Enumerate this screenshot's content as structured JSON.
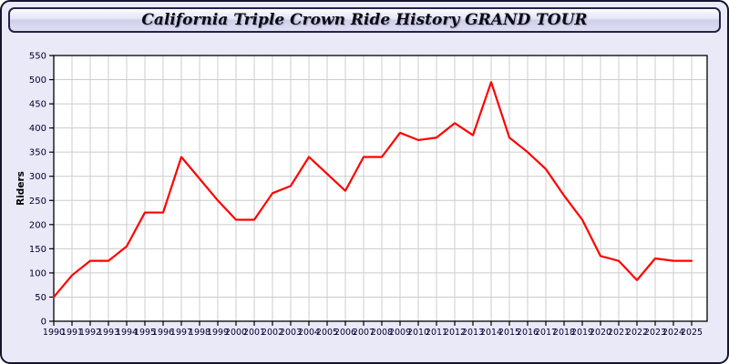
{
  "header": {
    "title": "California Triple Crown Ride History GRAND TOUR"
  },
  "chart_data": {
    "type": "line",
    "title": "California Triple Crown Ride History GRAND TOUR",
    "xlabel": "",
    "ylabel": "Riders",
    "x": [
      1990,
      1991,
      1992,
      1993,
      1994,
      1995,
      1996,
      1997,
      1998,
      1999,
      2000,
      2001,
      2002,
      2003,
      2004,
      2005,
      2006,
      2007,
      2008,
      2009,
      2010,
      2011,
      2012,
      2013,
      2014,
      2015,
      2016,
      2017,
      2018,
      2019,
      2020,
      2021,
      2022,
      2023,
      2024,
      2025
    ],
    "x_tick_labels": [
      "1990",
      "1991",
      "1992",
      "1993",
      "1994",
      "1995",
      "1996",
      "1997",
      "1998",
      "1999",
      "2000",
      "2001",
      "2002",
      "2003",
      "2004",
      "2005",
      "2006",
      "2007",
      "2008",
      "2009",
      "2010",
      "2011",
      "2012",
      "2013",
      "2014",
      "2015",
      "2016",
      "2017",
      "2018",
      "2019",
      "2020",
      "2021",
      "2022",
      "2023",
      "2024",
      "2025"
    ],
    "values": [
      50,
      95,
      125,
      125,
      155,
      225,
      225,
      340,
      295,
      250,
      210,
      210,
      265,
      280,
      340,
      305,
      270,
      340,
      340,
      390,
      375,
      380,
      410,
      385,
      495,
      380,
      350,
      315,
      260,
      210,
      135,
      125,
      85,
      130,
      125,
      125
    ],
    "ylim": [
      0,
      550
    ],
    "y_ticks": [
      0,
      50,
      100,
      150,
      200,
      250,
      300,
      350,
      400,
      450,
      500,
      550
    ],
    "grid": true,
    "legend": "none",
    "series_name": "Riders",
    "line_color": "#ff0000"
  },
  "colors": {
    "page_background": "#e9e9f8",
    "plot_background": "#ffffff",
    "grid_line": "#cccccc",
    "axis_border": "#000000",
    "tick_label": "#000033",
    "data_line": "#ff0000",
    "frame_border": "#15152e"
  }
}
